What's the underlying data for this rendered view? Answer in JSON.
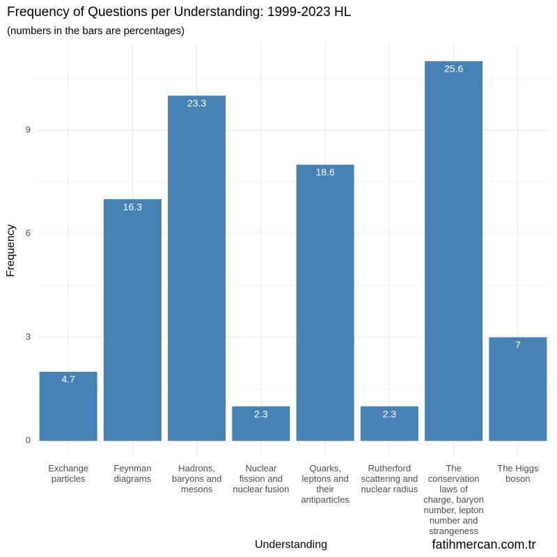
{
  "chart_data": {
    "type": "bar",
    "title": "Frequency of Questions per Understanding: 1999-2023 HL",
    "subtitle": "(numbers in the bars are percentages)",
    "x_label": "Understanding",
    "y_label": "Frequency",
    "watermark": "fatihmercan.com.tr",
    "categories": [
      "Exchange\nparticles",
      "Feynman\ndiagrams",
      "Hadrons,\nbaryons and\nmesons",
      "Nuclear\nfission and\nnuclear fusion",
      "Quarks,\nleptons and\ntheir\nantiparticles",
      "Rutherford\nscattering and\nnuclear radius",
      "The\nconservation\nlaws of\ncharge, baryon\nnumber, lepton\nnumber and\nstrangeness",
      "The Higgs\nboson"
    ],
    "values": [
      2,
      7,
      10,
      1,
      8,
      1,
      11,
      3
    ],
    "percentages": [
      4.7,
      16.3,
      23.3,
      2.3,
      18.6,
      2.3,
      25.6,
      7
    ],
    "color": "#4682b4",
    "ylim": [
      -0.44,
      11.52
    ],
    "yticks": [
      0,
      3,
      6,
      9
    ],
    "yminor": [
      1.5,
      4.5,
      7.5,
      10.5
    ],
    "grid": true
  }
}
